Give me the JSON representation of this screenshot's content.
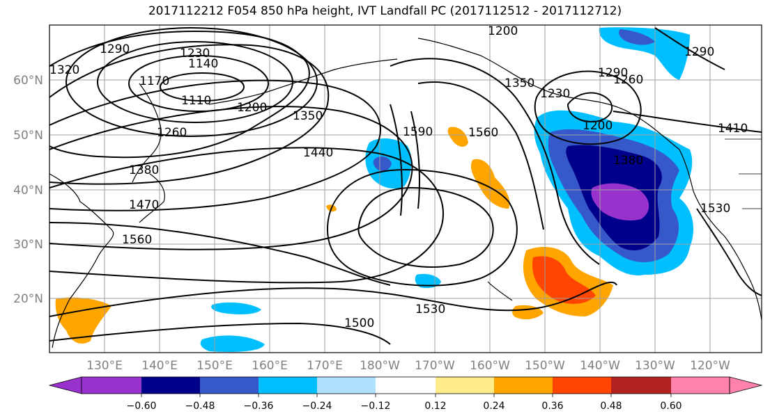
{
  "title": "2017112212 F054 850 hPa height, IVT Landfall PC (2017112512 - 2017112712)",
  "lon_labels": [
    "130°E",
    "140°E",
    "150°E",
    "160°E",
    "170°E",
    "180°W",
    "170°W",
    "160°W",
    "150°W",
    "140°W",
    "130°W",
    "120°W"
  ],
  "lat_labels": [
    "60°N",
    "50°N",
    "40°N",
    "30°N",
    "20°N"
  ],
  "contour_labels": [
    "1290",
    "1230",
    "1140",
    "1170",
    "1110",
    "1200",
    "1350",
    "1260",
    "1440",
    "1380",
    "1470",
    "1560",
    "1590",
    "1560",
    "1530",
    "1500",
    "1350",
    "1290",
    "1260",
    "1230",
    "1200",
    "1380",
    "1410",
    "1530",
    "1290",
    "1320",
    "1200"
  ],
  "colorbar": {
    "colors": [
      "#9932cc",
      "#00008b",
      "#3658c8",
      "#00bfff",
      "#b0e2ff",
      "#ffffff",
      "#ffec8b",
      "#ffa500",
      "#ff4500",
      "#b22222",
      "#ff82ab"
    ],
    "tick_labels": [
      "−0.60",
      "−0.48",
      "−0.36",
      "−0.24",
      "−0.12",
      "0.12",
      "0.24",
      "0.36",
      "0.48",
      "0.60"
    ]
  }
}
